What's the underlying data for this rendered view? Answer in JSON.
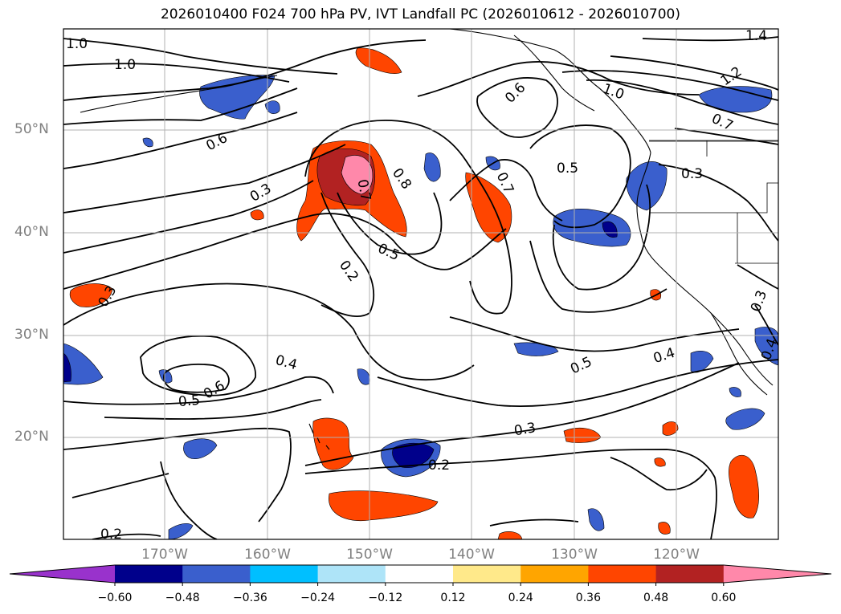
{
  "title": "2026010400 F024 700 hPa PV, IVT Landfall PC (2026010612 - 2026010700)",
  "map": {
    "lat_labels": [
      "50°N",
      "40°N",
      "30°N",
      "20°N"
    ],
    "lon_labels": [
      "170°W",
      "160°W",
      "150°W",
      "140°W",
      "130°W",
      "120°W"
    ],
    "contour_labels": [
      "1.0",
      "1.0",
      "0.6",
      "0.3",
      "0.7",
      "0.8",
      "0.5",
      "0.2",
      "0.6",
      "0.7",
      "0.5",
      "0.3",
      "0.4",
      "0.5",
      "0.6",
      "0.5",
      "0.4",
      "0.3",
      "0.2",
      "0.2",
      "1.2",
      "1.4",
      "1.0",
      "0.7",
      "0.3",
      "0.3",
      "0.4",
      "0.6",
      "0.5"
    ]
  },
  "colorbar": {
    "ticks": [
      "−0.60",
      "−0.48",
      "−0.36",
      "−0.24",
      "−0.12",
      "0.12",
      "0.24",
      "0.36",
      "0.48",
      "0.60"
    ],
    "colors": [
      "#9932cc",
      "#00008b",
      "#3a5fcd",
      "#00bfff",
      "#aee4f8",
      "#ffffff",
      "#ffe98a",
      "#ffa500",
      "#ff4500",
      "#b22222",
      "#ff88aa"
    ]
  }
}
